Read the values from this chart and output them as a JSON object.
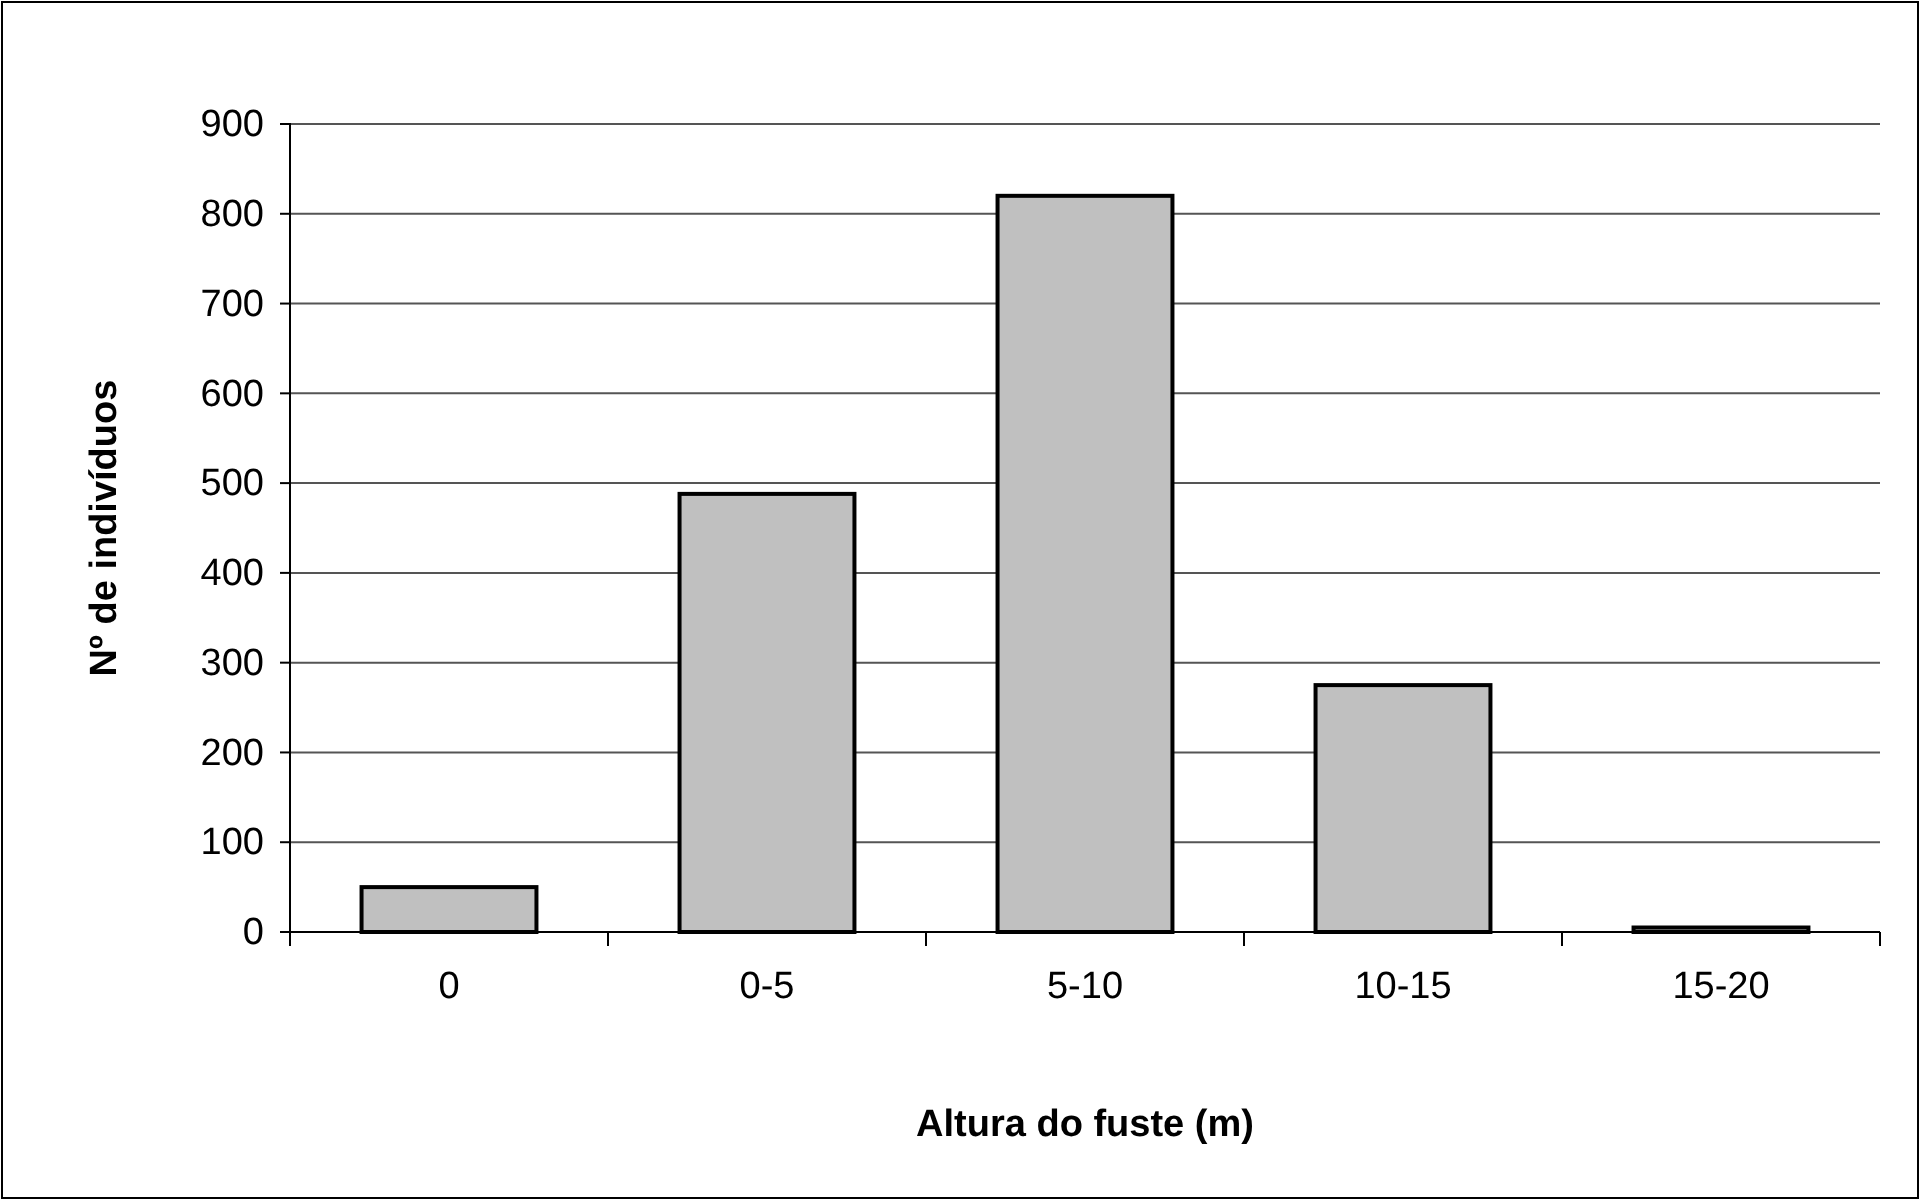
{
  "chart_data": {
    "type": "bar",
    "xlabel": "Altura do fuste (m)",
    "ylabel": "Nº de indivíduos",
    "categories": [
      "0",
      "0-5",
      "5-10",
      "10-15",
      "15-20"
    ],
    "values": [
      50,
      488,
      820,
      275,
      5
    ],
    "color": "#c0c0c0",
    "ylim": [
      0,
      900
    ],
    "yticks": [
      0,
      100,
      200,
      300,
      400,
      500,
      600,
      700,
      800,
      900
    ],
    "grid": "y"
  }
}
